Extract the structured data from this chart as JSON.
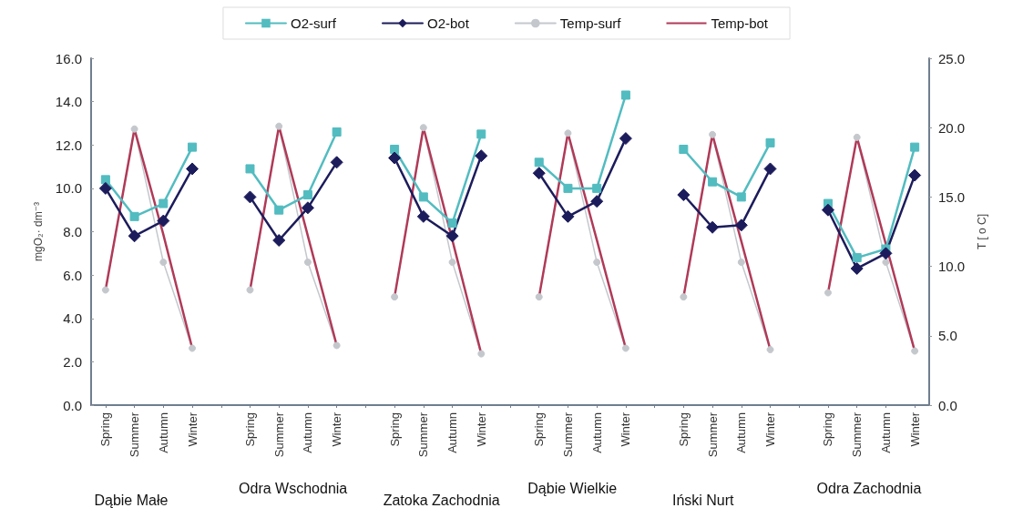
{
  "chart_data": {
    "type": "line",
    "ylabel": "mgO₂· dm⁻³",
    "y2label": "T [ o C]",
    "categories": [
      "Spring",
      "Summer",
      "Autumn",
      "Winter",
      null,
      "Spring",
      "Summer",
      "Autumn",
      "Winter",
      null,
      "Spring",
      "Summer",
      "Autumn",
      "Winter",
      null,
      "Spring",
      "Summer",
      "Autumn",
      "Winter",
      null,
      "Spring",
      "Summer",
      "Autumn",
      "Winter",
      null,
      "Spring",
      "Summer",
      "Autumn",
      "Winter"
    ],
    "annotations": [
      "Dąbie Małe",
      "Odra Wschodnia",
      "Zatoka Zachodnia",
      "Dąbie Wielkie",
      "Iński Nurt",
      "Odra Zachodnia"
    ],
    "series": [
      {
        "name": "O2-surf",
        "color": "#52bcc0",
        "marker": "square",
        "values": [
          10.4,
          8.7,
          9.3,
          11.9,
          null,
          10.9,
          9.0,
          9.7,
          12.6,
          null,
          11.8,
          9.6,
          8.4,
          12.5,
          null,
          11.2,
          10.0,
          10.0,
          14.3,
          null,
          11.8,
          10.3,
          9.6,
          12.1,
          null,
          9.3,
          6.8,
          7.2,
          11.9
        ]
      },
      {
        "name": "O2-bot",
        "color": "#1c1c5c",
        "marker": "diamond",
        "values": [
          10.0,
          7.8,
          8.5,
          10.9,
          null,
          9.6,
          7.6,
          9.1,
          11.2,
          null,
          11.4,
          8.7,
          7.8,
          11.5,
          null,
          10.7,
          8.7,
          9.4,
          12.3,
          null,
          9.7,
          8.2,
          8.3,
          10.9,
          null,
          9.0,
          6.3,
          7.0,
          10.6
        ]
      },
      {
        "name": "Temp-surf",
        "color": "#c4c8cc",
        "marker": "circle",
        "axis": "y2",
        "values": [
          8.3,
          19.9,
          10.3,
          4.1,
          null,
          8.3,
          20.1,
          10.3,
          4.3,
          null,
          7.8,
          20.0,
          10.3,
          3.7,
          null,
          7.8,
          19.6,
          10.3,
          4.1,
          null,
          7.8,
          19.5,
          10.3,
          4.0,
          null,
          8.1,
          19.3,
          10.3,
          3.9
        ]
      },
      {
        "name": "Temp-bot",
        "color": "#b03a58",
        "marker": "none",
        "axis": "y2",
        "values": [
          8.3,
          19.9,
          12.3,
          4.1,
          null,
          8.3,
          20.1,
          12.2,
          4.3,
          null,
          7.8,
          20.0,
          11.9,
          3.7,
          null,
          7.8,
          19.6,
          11.9,
          4.1,
          null,
          7.8,
          19.5,
          11.8,
          4.0,
          null,
          8.1,
          19.3,
          11.6,
          3.9
        ]
      }
    ],
    "ylim": [
      0,
      16
    ],
    "yticks": [
      {
        "value": 0,
        "label": "0.0"
      },
      {
        "value": 2,
        "label": "2.0"
      },
      {
        "value": 4,
        "label": "4.0"
      },
      {
        "value": 6,
        "label": "6.0"
      },
      {
        "value": 8,
        "label": "8.0"
      },
      {
        "value": 10,
        "label": "10.0"
      },
      {
        "value": 12,
        "label": "12.0"
      },
      {
        "value": 14,
        "label": "14.0"
      },
      {
        "value": 16,
        "label": "16.0"
      }
    ],
    "y2lim": [
      0,
      25
    ],
    "y2ticks": [
      {
        "value": 0,
        "label": "0.0"
      },
      {
        "value": 5,
        "label": "5.0"
      },
      {
        "value": 10,
        "label": "10.0"
      },
      {
        "value": 15,
        "label": "15.0"
      },
      {
        "value": 20,
        "label": "20.0"
      },
      {
        "value": 25,
        "label": "25.0"
      }
    ],
    "grid": false,
    "legend": "top"
  }
}
